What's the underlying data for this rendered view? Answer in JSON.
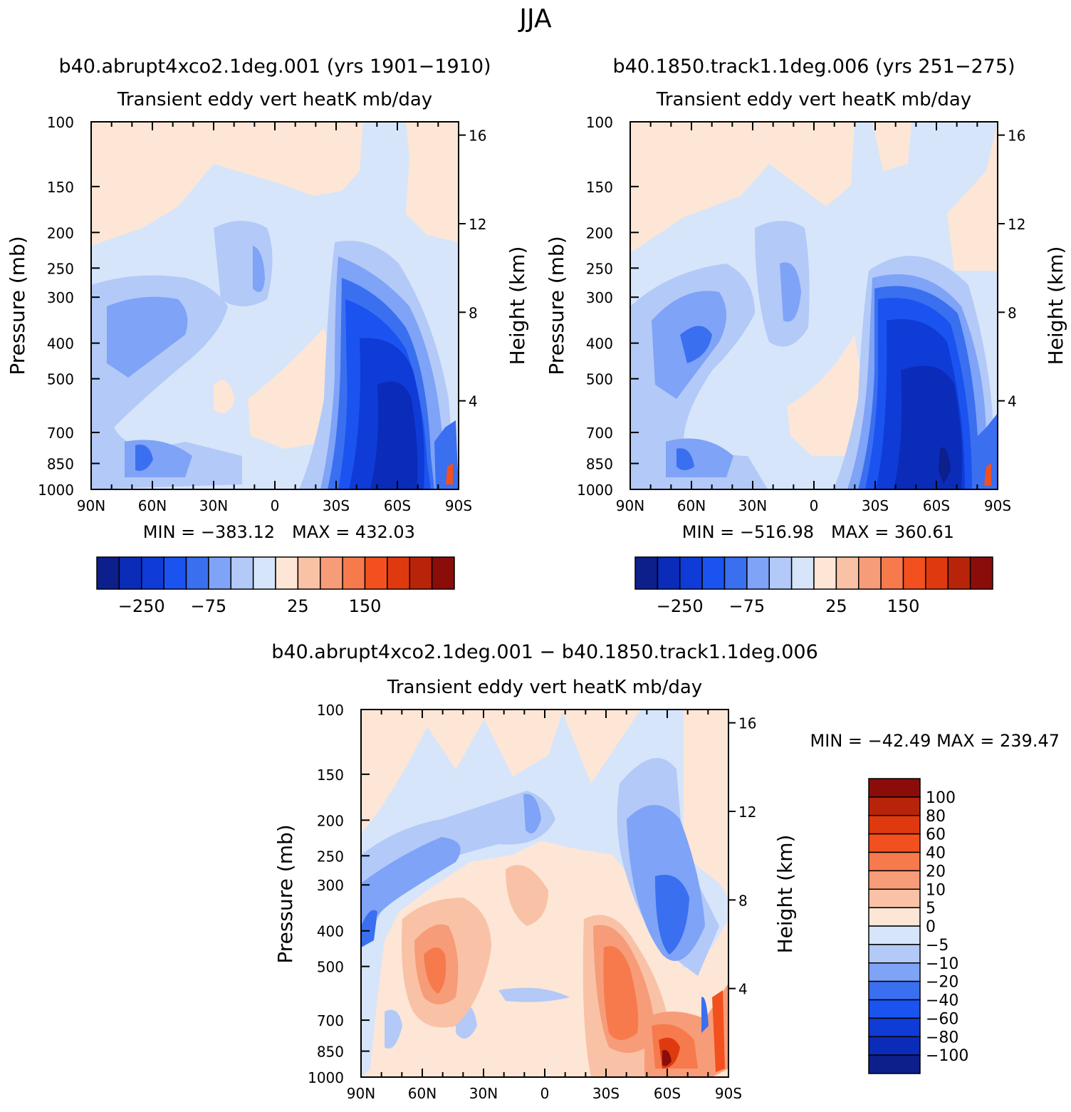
{
  "figure_title": "JJA",
  "colors": {
    "blue_scale": [
      "#0c1f8a",
      "#0a2cb8",
      "#0f3bd6",
      "#1a53f0",
      "#3a6ff0",
      "#7ea3f7",
      "#b3c9f7",
      "#d6e5fa"
    ],
    "red_scale": [
      "#fde6d6",
      "#f9c2a6",
      "#f79c78",
      "#f77a4d",
      "#f3501f",
      "#df3a0f",
      "#b8240a",
      "#8a0d0a"
    ],
    "diff_scale": [
      "#0c1f8a",
      "#0a2cb8",
      "#0f3bd6",
      "#1a53f0",
      "#3a6ff0",
      "#7ea3f7",
      "#b3c9f7",
      "#d6e5fa",
      "#fde6d6",
      "#f9c2a6",
      "#f79c78",
      "#f77a4d",
      "#f3501f",
      "#df3a0f",
      "#b8240a",
      "#8a0d0a"
    ]
  },
  "chart_data": [
    {
      "type": "contour",
      "title": "b40.abrupt4xco2.1deg.001 (yrs 1901−1910)",
      "subtitle": "Transient eddy vert heatK mb/day",
      "ylabel": "Pressure (mb)",
      "y2label": "Height (km)",
      "xlim": [
        -90,
        90
      ],
      "x_ticks": [
        "90N",
        "60N",
        "30N",
        "0",
        "30S",
        "60S",
        "90S"
      ],
      "y_ticks": [
        "100",
        "150",
        "200",
        "250",
        "300",
        "400",
        "500",
        "700",
        "850",
        "1000"
      ],
      "y2_ticks": [
        "16",
        "12",
        "8",
        "4"
      ],
      "min_label": "MIN = −383.12",
      "max_label": "MAX = 432.03",
      "min": -383.12,
      "max": 432.03,
      "colorbar_labels": [
        "−250",
        "−75",
        "25",
        "150"
      ]
    },
    {
      "type": "contour",
      "title": "b40.1850.track1.1deg.006 (yrs 251−275)",
      "subtitle": "Transient eddy vert heatK mb/day",
      "ylabel": "Pressure (mb)",
      "y2label": "Height (km)",
      "xlim": [
        -90,
        90
      ],
      "x_ticks": [
        "90N",
        "60N",
        "30N",
        "0",
        "30S",
        "60S",
        "90S"
      ],
      "y_ticks": [
        "100",
        "150",
        "200",
        "250",
        "300",
        "400",
        "500",
        "700",
        "850",
        "1000"
      ],
      "y2_ticks": [
        "16",
        "12",
        "8",
        "4"
      ],
      "min_label": "MIN = −516.98",
      "max_label": "MAX = 360.61",
      "min": -516.98,
      "max": 360.61,
      "colorbar_labels": [
        "−250",
        "−75",
        "25",
        "150"
      ]
    },
    {
      "type": "contour",
      "title": "b40.abrupt4xco2.1deg.001 − b40.1850.track1.1deg.006",
      "subtitle": "Transient eddy vert heatK mb/day",
      "ylabel": "Pressure (mb)",
      "y2label": "Height (km)",
      "xlim": [
        -90,
        90
      ],
      "x_ticks": [
        "90N",
        "60N",
        "30N",
        "0",
        "30S",
        "60S",
        "90S"
      ],
      "y_ticks": [
        "100",
        "150",
        "200",
        "250",
        "300",
        "400",
        "500",
        "700",
        "850",
        "1000"
      ],
      "y2_ticks": [
        "16",
        "12",
        "8",
        "4"
      ],
      "minmax_label": "MIN = −42.49   MAX = 239.47",
      "min": -42.49,
      "max": 239.47,
      "colorbar_labels": [
        "100",
        "80",
        "60",
        "40",
        "20",
        "10",
        "5",
        "0",
        "−5",
        "−10",
        "−20",
        "−40",
        "−60",
        "−80",
        "−100"
      ]
    }
  ]
}
